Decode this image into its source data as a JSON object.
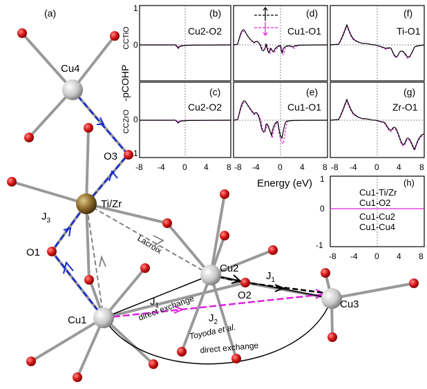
{
  "structure": {
    "panel_label": "(a)",
    "atoms": {
      "cu1": "Cu1",
      "cu2": "Cu2",
      "cu3": "Cu3",
      "cu4": "Cu4",
      "o1": "O1",
      "o2": "O2",
      "o3": "O3",
      "tizr": "Ti/Zr"
    },
    "exchange": {
      "j1_left": "J",
      "j1_left_sub": "1",
      "j1_right": "J",
      "j1_right_sub": "1",
      "j2": "J",
      "j2_sub": "2",
      "j3": "J",
      "j3_sub": "3",
      "direct_exchange_top": "direct exchange",
      "direct_exchange_bottom": "direct exchange",
      "lacroix": "Lacroix",
      "toyoda": "Toyoda et al."
    }
  },
  "cohp": {
    "ylabel": "-pCOHP",
    "row_label_top": "CCTiO",
    "row_label_bottom": "CCZrO",
    "xlabel": "Energy (eV)",
    "panels": {
      "b": {
        "tag": "(b)",
        "bond": "Cu2-O2"
      },
      "c": {
        "tag": "(c)",
        "bond": "Cu2-O2"
      },
      "d": {
        "tag": "(d)",
        "bond": "Cu1-O1"
      },
      "e": {
        "tag": "(e)",
        "bond": "Cu1-O1"
      },
      "f": {
        "tag": "(f)",
        "bond": "Ti-O1"
      },
      "g": {
        "tag": "(g)",
        "bond": "Zr-O1"
      },
      "h": {
        "tag": "(h)",
        "bonds": [
          "Cu1-Ti/Zr",
          "Cu1-O2",
          "Cu1-Cu2",
          "Cu1-Cu4"
        ]
      }
    },
    "x_ticks_panel_b": [
      "-8",
      "-4",
      "0",
      "4",
      "8"
    ],
    "x_ticks_inner": [
      "-8",
      "-4",
      "0",
      "4",
      "8"
    ],
    "y_ticks_top": [
      "0",
      "1"
    ],
    "y_ticks_bottom": [
      "0",
      "1"
    ],
    "y_ticks_h": [
      "1",
      "0",
      "-1"
    ],
    "h_x_ticks": [
      "-8",
      "-4",
      "0",
      "4",
      "8"
    ]
  },
  "colors": {
    "spin_up": "#000000",
    "spin_down": "#e020e0",
    "oxygen": "#d01010",
    "copper": "#c8c8c8",
    "tizr": "#8b6a2b",
    "j3_path": "#1a2ccc",
    "grey_path": "#808080"
  }
}
